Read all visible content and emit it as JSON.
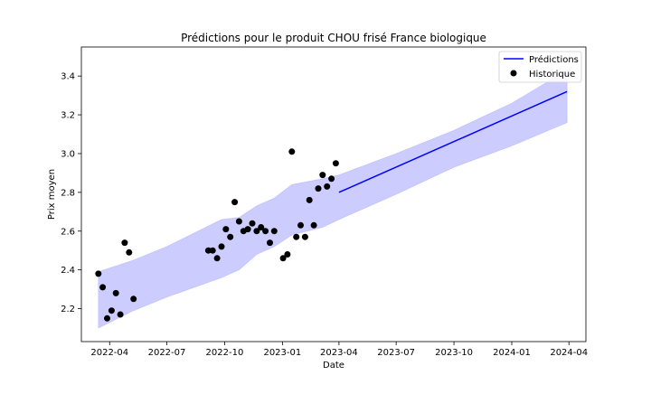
{
  "chart_data": {
    "type": "line",
    "title": "Prédictions pour le produit CHOU frisé France biologique",
    "xlabel": "Date",
    "ylabel": "Prix moyen",
    "xlim": [
      "2022-02-15",
      "2024-04-28"
    ],
    "ylim": [
      2.03,
      3.55
    ],
    "x_ticks": [
      "2022-04",
      "2022-07",
      "2022-10",
      "2023-01",
      "2023-04",
      "2023-07",
      "2023-10",
      "2024-01",
      "2024-04"
    ],
    "y_ticks": [
      2.2,
      2.4,
      2.6,
      2.8,
      3.0,
      3.2,
      3.4
    ],
    "y_tick_labels": [
      "2.2",
      "2.4",
      "2.6",
      "2.8",
      "3.0",
      "3.2",
      "3.4"
    ],
    "grid": false,
    "legend_position": "top-right",
    "series": [
      {
        "name": "Prédictions",
        "style": "line",
        "color": "#0000ff",
        "x": [
          "2023-04-01",
          "2024-03-29"
        ],
        "y": [
          2.8,
          3.32
        ]
      },
      {
        "name": "Historique",
        "style": "scatter",
        "color": "#000000",
        "x": [
          "2022-03-14",
          "2022-03-21",
          "2022-03-28",
          "2022-04-04",
          "2022-04-11",
          "2022-04-18",
          "2022-04-25",
          "2022-05-02",
          "2022-05-09",
          "2022-09-05",
          "2022-09-12",
          "2022-09-19",
          "2022-09-26",
          "2022-10-03",
          "2022-10-10",
          "2022-10-17",
          "2022-10-24",
          "2022-10-31",
          "2022-11-07",
          "2022-11-14",
          "2022-11-21",
          "2022-11-28",
          "2022-12-05",
          "2022-12-12",
          "2022-12-19",
          "2023-01-02",
          "2023-01-09",
          "2023-01-16",
          "2023-01-23",
          "2023-01-30",
          "2023-02-06",
          "2023-02-13",
          "2023-02-20",
          "2023-02-27",
          "2023-03-06",
          "2023-03-13",
          "2023-03-20",
          "2023-03-27"
        ],
        "y": [
          2.38,
          2.31,
          2.15,
          2.19,
          2.28,
          2.17,
          2.54,
          2.49,
          2.25,
          2.5,
          2.5,
          2.46,
          2.52,
          2.61,
          2.57,
          2.75,
          2.65,
          2.6,
          2.61,
          2.64,
          2.6,
          2.62,
          2.6,
          2.54,
          2.6,
          2.46,
          2.48,
          3.01,
          2.57,
          2.63,
          2.57,
          2.76,
          2.63,
          2.82,
          2.89,
          2.83,
          2.87,
          2.95
        ]
      }
    ],
    "confidence_band": {
      "color": "#b0b0ff",
      "x": [
        "2022-03-14",
        "2022-05-09",
        "2022-07-01",
        "2022-09-26",
        "2022-10-24",
        "2022-11-21",
        "2022-12-19",
        "2023-01-16",
        "2023-03-06",
        "2023-04-01",
        "2023-07-01",
        "2023-10-01",
        "2024-01-01",
        "2024-03-29"
      ],
      "upper": [
        2.39,
        2.45,
        2.52,
        2.66,
        2.67,
        2.73,
        2.77,
        2.84,
        2.87,
        2.89,
        3.0,
        3.12,
        3.26,
        3.43
      ],
      "lower": [
        2.1,
        2.19,
        2.26,
        2.36,
        2.4,
        2.48,
        2.52,
        2.58,
        2.62,
        2.66,
        2.79,
        2.93,
        3.04,
        3.16
      ]
    }
  }
}
